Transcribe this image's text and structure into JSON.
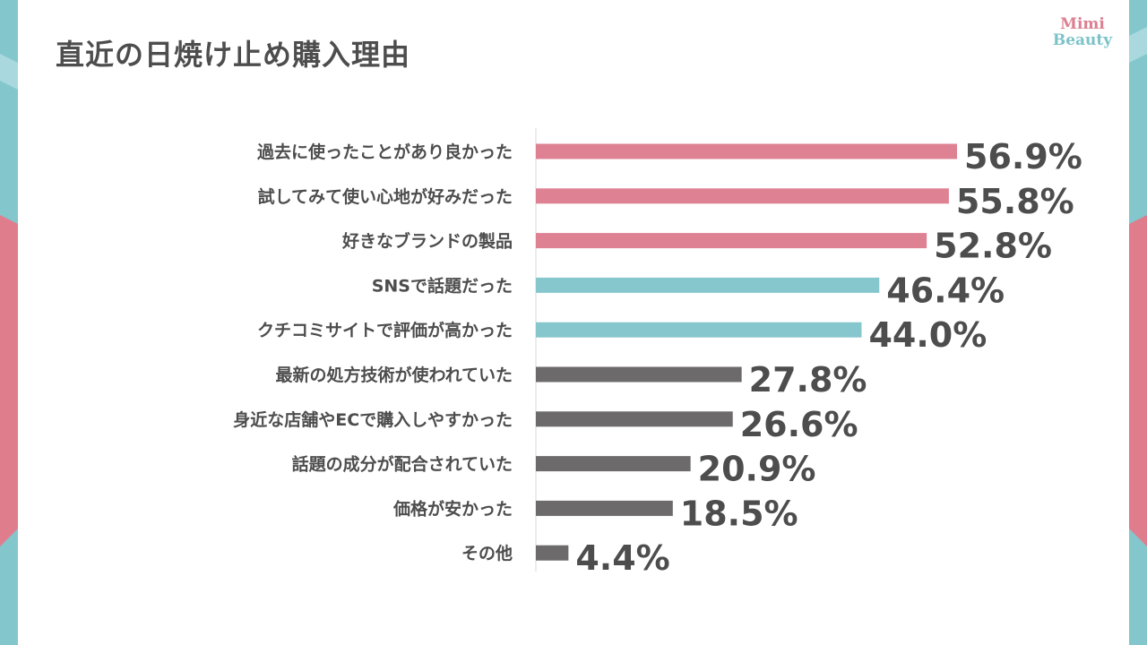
{
  "title": "直近の日焼け止め購入理由",
  "logo": {
    "line1": "Mimi",
    "line2": "Beauty"
  },
  "colors": {
    "pink": "#de8193",
    "teal": "#86c7cd",
    "gray": "#6d6a6b",
    "text": "#4d4d4d",
    "side_teal": "#83c7cd",
    "side_pink": "#e07d8d"
  },
  "chart_data": {
    "type": "bar",
    "orientation": "horizontal",
    "title": "直近の日焼け止め購入理由",
    "unit": "%",
    "categories": [
      "過去に使ったことがあり良かった",
      "試してみて使い心地が好みだった",
      "好きなブランドの製品",
      "SNSで話題だった",
      "クチコミサイトで評価が高かった",
      "最新の処方技術が使われていた",
      "身近な店舗やECで購入しやすかった",
      "話題の成分が配合されていた",
      "価格が安かった",
      "その他"
    ],
    "values": [
      56.9,
      55.8,
      52.8,
      46.4,
      44.0,
      27.8,
      26.6,
      20.9,
      18.5,
      4.4
    ],
    "labels": [
      "56.9%",
      "55.8%",
      "52.8%",
      "46.4%",
      "44.0%",
      "27.8%",
      "26.6%",
      "20.9%",
      "18.5%",
      "4.4%"
    ],
    "bar_colors": [
      "pink",
      "pink",
      "pink",
      "teal",
      "teal",
      "gray",
      "gray",
      "gray",
      "gray",
      "gray"
    ],
    "xlim": [
      0,
      60
    ]
  }
}
